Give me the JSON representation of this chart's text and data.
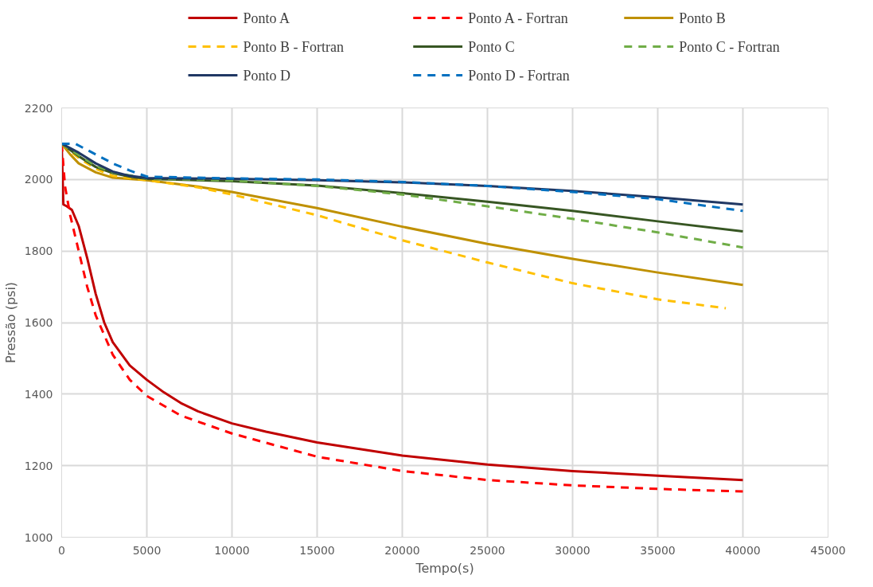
{
  "chart_data": {
    "type": "line",
    "xlabel": "Tempo(s)",
    "ylabel": "Pressão (psi)",
    "xlim": [
      0,
      45000
    ],
    "xticks": [
      0,
      5000,
      10000,
      15000,
      20000,
      25000,
      30000,
      35000,
      40000,
      45000
    ],
    "ylim": [
      1000,
      2200
    ],
    "yticks": [
      1000,
      1200,
      1400,
      1600,
      1800,
      2000,
      2200
    ],
    "grid": true,
    "legend": "top",
    "marker": "none",
    "series": [
      {
        "name": "Ponto A",
        "color": "#c00000",
        "line_style": "solid",
        "x": [
          0,
          100,
          300,
          600,
          1000,
          1500,
          2000,
          2500,
          3000,
          4000,
          5000,
          6000,
          7000,
          8000,
          10000,
          12000,
          15000,
          20000,
          25000,
          30000,
          35000,
          40000
        ],
        "values": [
          2100,
          1930,
          1925,
          1915,
          1870,
          1780,
          1680,
          1600,
          1545,
          1480,
          1440,
          1405,
          1375,
          1352,
          1318,
          1295,
          1265,
          1228,
          1203,
          1185,
          1172,
          1160
        ]
      },
      {
        "name": "Ponto A - Fortran",
        "color": "#ff0000",
        "line_style": "dashed",
        "x": [
          0,
          200,
          500,
          1000,
          1500,
          2000,
          3000,
          4000,
          5000,
          7000,
          10000,
          15000,
          20000,
          25000,
          30000,
          35000,
          40000
        ],
        "values": [
          2100,
          1980,
          1900,
          1800,
          1700,
          1620,
          1510,
          1440,
          1395,
          1340,
          1290,
          1225,
          1185,
          1160,
          1145,
          1135,
          1128
        ]
      },
      {
        "name": "Ponto B",
        "color": "#bf9000",
        "line_style": "solid",
        "x": [
          0,
          500,
          1000,
          2000,
          3000,
          5000,
          8000,
          10000,
          15000,
          20000,
          25000,
          30000,
          35000,
          40000
        ],
        "values": [
          2100,
          2070,
          2045,
          2020,
          2005,
          1998,
          1980,
          1965,
          1920,
          1868,
          1820,
          1778,
          1740,
          1705
        ]
      },
      {
        "name": "Ponto B - Fortran",
        "color": "#ffc000",
        "line_style": "dashed",
        "x": [
          0,
          1000,
          2000,
          3000,
          5000,
          8000,
          10000,
          15000,
          20000,
          25000,
          30000,
          35000,
          39000
        ],
        "values": [
          2100,
          2060,
          2030,
          2010,
          1998,
          1978,
          1958,
          1900,
          1830,
          1768,
          1710,
          1665,
          1640
        ]
      },
      {
        "name": "Ponto C",
        "color": "#375623",
        "line_style": "solid",
        "x": [
          0,
          1000,
          2000,
          3000,
          4000,
          5000,
          10000,
          15000,
          20000,
          25000,
          30000,
          35000,
          40000
        ],
        "values": [
          2100,
          2065,
          2035,
          2018,
          2008,
          2002,
          1995,
          1983,
          1962,
          1938,
          1912,
          1883,
          1855
        ]
      },
      {
        "name": "Ponto C - Fortran",
        "color": "#70ad47",
        "line_style": "dashed",
        "x": [
          0,
          1000,
          2000,
          3000,
          5000,
          10000,
          15000,
          20000,
          25000,
          30000,
          35000,
          40000
        ],
        "values": [
          2100,
          2068,
          2038,
          2020,
          2003,
          1997,
          1982,
          1958,
          1925,
          1890,
          1852,
          1810
        ]
      },
      {
        "name": "Ponto D",
        "color": "#203864",
        "line_style": "solid",
        "x": [
          0,
          1000,
          2000,
          3000,
          4000,
          5000,
          10000,
          15000,
          20000,
          25000,
          30000,
          35000,
          40000
        ],
        "values": [
          2100,
          2075,
          2045,
          2022,
          2010,
          2004,
          2002,
          1998,
          1992,
          1982,
          1968,
          1950,
          1930
        ]
      },
      {
        "name": "Ponto D - Fortran",
        "color": "#0070c0",
        "line_style": "dashed",
        "x": [
          0,
          800,
          2000,
          3000,
          4000,
          5000,
          10000,
          15000,
          20000,
          25000,
          30000,
          35000,
          40000
        ],
        "values": [
          2100,
          2100,
          2070,
          2045,
          2025,
          2008,
          2003,
          2000,
          1993,
          1982,
          1965,
          1945,
          1912
        ]
      }
    ]
  }
}
